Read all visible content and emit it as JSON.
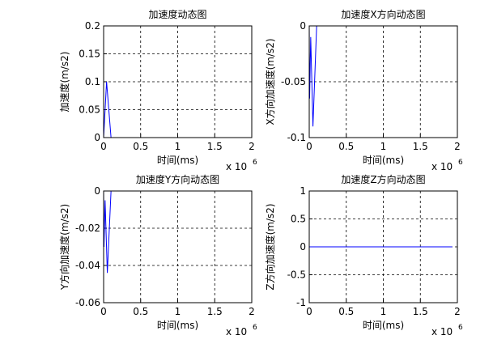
{
  "chart_data": [
    {
      "type": "line",
      "title": "加速度动态图",
      "xlabel": "时间(ms)",
      "ylabel": "加速度(m/s2)",
      "x_multiplier": {
        "base": "x 10",
        "exponent": "6"
      },
      "x": [
        0,
        0.04,
        0.1,
        1.93
      ],
      "series": [
        {
          "color": "#0000ff",
          "values": [
            0,
            0.1,
            0,
            0
          ]
        }
      ],
      "xlim": [
        0,
        2
      ],
      "ylim": [
        0,
        0.2
      ],
      "xticks": [
        0,
        0.5,
        1,
        1.5,
        2
      ],
      "yticks": [
        0,
        0.05,
        0.1,
        0.15,
        0.2
      ],
      "grid": true
    },
    {
      "type": "line",
      "title": "加速度X方向动态图",
      "xlabel": "时间(ms)",
      "ylabel": "X方向加速度(m/s2)",
      "x_multiplier": {
        "base": "x 10",
        "exponent": "6"
      },
      "x": [
        0,
        0.005,
        0.02,
        0.05,
        0.1,
        1.93
      ],
      "series": [
        {
          "color": "#0000ff",
          "values": [
            0,
            -0.065,
            -0.01,
            -0.09,
            0,
            0
          ]
        }
      ],
      "xlim": [
        0,
        2
      ],
      "ylim": [
        -0.1,
        0
      ],
      "xticks": [
        0,
        0.5,
        1,
        1.5,
        2
      ],
      "yticks": [
        -0.1,
        -0.05,
        0
      ],
      "grid": true
    },
    {
      "type": "line",
      "title": "加速度Y方向动态图",
      "xlabel": "时间(ms)",
      "ylabel": "Y方向加速度(m/s2)",
      "x_multiplier": {
        "base": "x 10",
        "exponent": "6"
      },
      "x": [
        0,
        0.005,
        0.02,
        0.05,
        0.1,
        1.93
      ],
      "series": [
        {
          "color": "#0000ff",
          "values": [
            0,
            -0.03,
            -0.005,
            -0.044,
            0,
            0
          ]
        }
      ],
      "xlim": [
        0,
        2
      ],
      "ylim": [
        -0.06,
        0
      ],
      "xticks": [
        0,
        0.5,
        1,
        1.5,
        2
      ],
      "yticks": [
        -0.06,
        -0.04,
        -0.02,
        0
      ],
      "grid": true
    },
    {
      "type": "line",
      "title": "加速度Z方向动态图",
      "xlabel": "时间(ms)",
      "ylabel": "Z方向加速度(m/s2)",
      "x_multiplier": {
        "base": "x 10",
        "exponent": "6"
      },
      "x": [
        0,
        1.93
      ],
      "series": [
        {
          "color": "#0000ff",
          "values": [
            0,
            0
          ]
        }
      ],
      "xlim": [
        0,
        2
      ],
      "ylim": [
        -1,
        1
      ],
      "xticks": [
        0,
        0.5,
        1,
        1.5,
        2
      ],
      "yticks": [
        -1,
        -0.5,
        0,
        0.5,
        1
      ],
      "grid": true
    }
  ]
}
